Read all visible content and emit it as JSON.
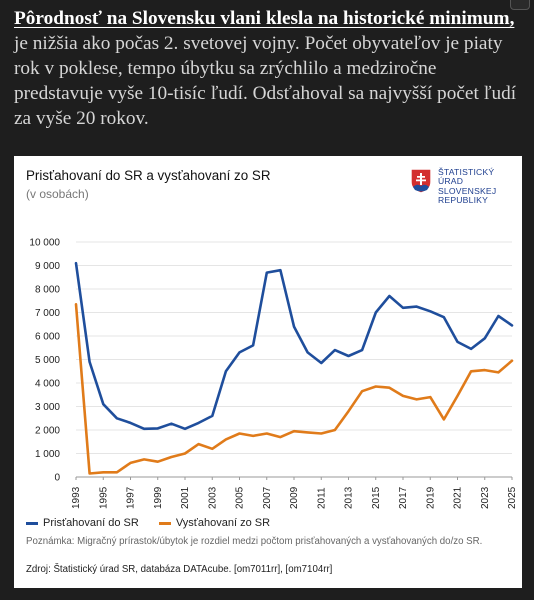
{
  "article": {
    "lead": "Pôrodnosť na Slovensku vlani klesla na historické minimum,",
    "body": " je nižšia ako počas 2. svetovej vojny. Počet obyvateľov je piaty rok v poklese, tempo úbytku sa zrýchlilo a medziročne predstavuje vyše 10-tisíc ľudí. Odsťahoval sa najvyšší počet ľudí za vyše 20 rokov."
  },
  "card": {
    "subtitle": "(v osobách)",
    "logo_lines": [
      "ŠTATISTICKÝ",
      "ÚRAD",
      "SLOVENSKEJ",
      "REPUBLIKY"
    ],
    "note": "Poznámka: Migračný prírastok/úbytok je rozdiel medzi počtom prisťahovaných a vysťahovaných do/zo SR.",
    "source": "Zdroj: Štatistický úrad SR, databáza DATAcube. [om7011rr], [om7104rr]"
  },
  "colors": {
    "immigration": "#1f4e9c",
    "emigration": "#e07b1a",
    "grid": "#e5e5e5"
  },
  "chart_data": {
    "type": "line",
    "title": "Prisťahovaní do SR a vysťahovaní zo SR",
    "ylabel": "",
    "xlabel": "",
    "ylim": [
      0,
      10000
    ],
    "yticks": [
      "0",
      "1 000",
      "2 000",
      "3 000",
      "4 000",
      "5 000",
      "6 000",
      "7 000",
      "8 000",
      "9 000",
      "10 000"
    ],
    "xticks": [
      "1993",
      "1995",
      "1997",
      "1999",
      "2001",
      "2003",
      "2005",
      "2007",
      "2009",
      "2011",
      "2013",
      "2015",
      "2017",
      "2019",
      "2021",
      "2023",
      "2025"
    ],
    "x": [
      1993,
      1994,
      1995,
      1996,
      1997,
      1998,
      1999,
      2000,
      2001,
      2002,
      2003,
      2004,
      2005,
      2006,
      2007,
      2008,
      2009,
      2010,
      2011,
      2012,
      2013,
      2014,
      2015,
      2016,
      2017,
      2018,
      2019,
      2020,
      2021,
      2022,
      2023,
      2024,
      2025
    ],
    "series": [
      {
        "name": "Prisťahovaní do SR",
        "values": [
          9100,
          4900,
          3100,
          2500,
          2300,
          2050,
          2070,
          2270,
          2050,
          2300,
          2600,
          4500,
          5300,
          5600,
          8700,
          8800,
          6400,
          5300,
          4850,
          5400,
          5150,
          5400,
          7000,
          7700,
          7200,
          7250,
          7050,
          6800,
          5750,
          5450,
          5900,
          6850,
          6450
        ]
      },
      {
        "name": "Vysťahovaní zo SR",
        "values": [
          7350,
          150,
          200,
          200,
          600,
          750,
          650,
          850,
          1000,
          1400,
          1200,
          1600,
          1850,
          1750,
          1850,
          1700,
          1950,
          1900,
          1850,
          2000,
          2800,
          3650,
          3850,
          3800,
          3450,
          3300,
          3400,
          2450,
          3450,
          4500,
          4550,
          4450,
          4950
        ]
      }
    ]
  }
}
